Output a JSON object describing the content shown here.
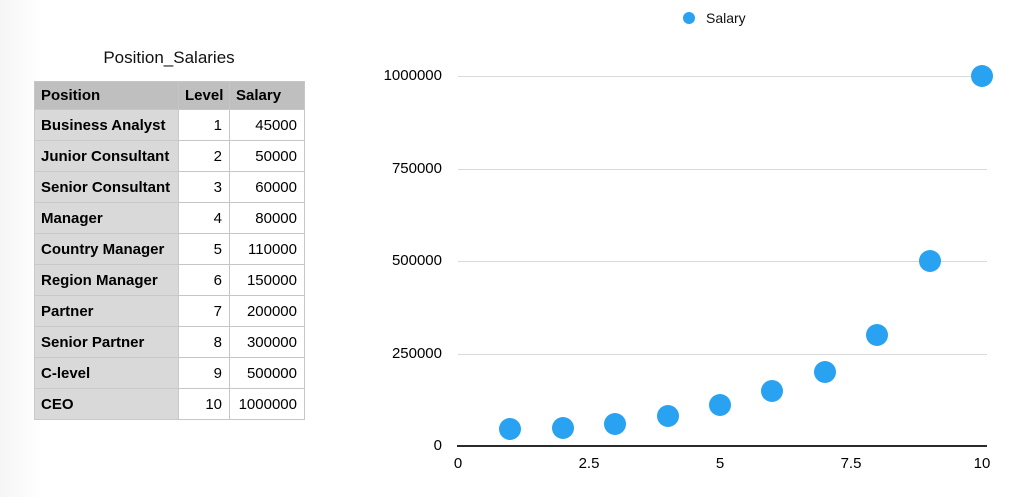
{
  "table": {
    "title": "Position_Salaries",
    "columns": [
      "Position",
      "Level",
      "Salary"
    ],
    "rows": [
      {
        "position": "Business Analyst",
        "level": 1,
        "salary": 45000
      },
      {
        "position": "Junior Consultant",
        "level": 2,
        "salary": 50000
      },
      {
        "position": "Senior Consultant",
        "level": 3,
        "salary": 60000
      },
      {
        "position": "Manager",
        "level": 4,
        "salary": 80000
      },
      {
        "position": "Country Manager",
        "level": 5,
        "salary": 110000
      },
      {
        "position": "Region Manager",
        "level": 6,
        "salary": 150000
      },
      {
        "position": "Partner",
        "level": 7,
        "salary": 200000
      },
      {
        "position": "Senior Partner",
        "level": 8,
        "salary": 300000
      },
      {
        "position": "C-level",
        "level": 9,
        "salary": 500000
      },
      {
        "position": "CEO",
        "level": 10,
        "salary": 1000000
      }
    ],
    "header_bg": "#bfbfbf",
    "label_column_bg": "#d9d9d9"
  },
  "chart_data": {
    "type": "scatter",
    "title": "",
    "xlabel": "",
    "ylabel": "",
    "legend": {
      "label": "Salary",
      "position": "top"
    },
    "series": [
      {
        "name": "Salary",
        "x": [
          1,
          2,
          3,
          4,
          5,
          6,
          7,
          8,
          9,
          10
        ],
        "y": [
          45000,
          50000,
          60000,
          80000,
          110000,
          150000,
          200000,
          300000,
          500000,
          1000000
        ]
      }
    ],
    "xlim": [
      0,
      10
    ],
    "ylim": [
      0,
      1000000
    ],
    "x_ticks": [
      0,
      2.5,
      5,
      7.5,
      10
    ],
    "y_ticks": [
      0,
      250000,
      500000,
      750000,
      1000000
    ],
    "grid": "horizontal",
    "marker_color": "#2aa2f2",
    "gridline_color": "#d9d9d9",
    "axis_line_color": "#2b2b2b",
    "tick_label_color": "#000000"
  }
}
